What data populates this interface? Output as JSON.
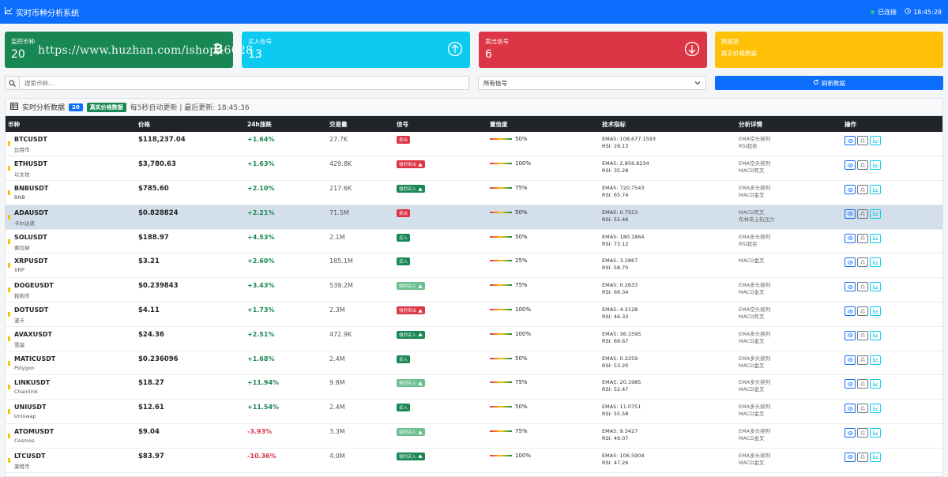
{
  "header": {
    "title": "实时币种分析系统",
    "status": "已连接",
    "time": "18:45:28"
  },
  "cards": [
    {
      "label": "监控币种",
      "value": "20",
      "icon": "bitcoin-icon",
      "color": "#198754"
    },
    {
      "label": "买入信号",
      "value": "13",
      "icon": "arrow-up-circle-icon",
      "color": "#0dcaf0"
    },
    {
      "label": "卖出信号",
      "value": "6",
      "icon": "arrow-down-circle-icon",
      "color": "#dc3545"
    },
    {
      "label": "数据源",
      "value": "真实价格数据",
      "icon": "",
      "color": "#ffc107"
    }
  ],
  "watermark": "https://www.huzhan.com/ishop46028",
  "search": {
    "placeholder": "搜索币种..."
  },
  "filter": {
    "selected": "所有信号"
  },
  "refresh_label": "刷新数据",
  "panel": {
    "title": "实时分析数据",
    "count": "20",
    "source_badge": "真实价格数据",
    "note": "每5秒自动更新 | 最后更新: 18:45:36"
  },
  "columns": [
    "币种",
    "价格",
    "24h涨跌",
    "交易量",
    "信号",
    "置信度",
    "技术指标",
    "分析详情",
    "操作"
  ],
  "colors": {
    "primary": "#0d6efd",
    "up": "#198754",
    "down": "#dc3545",
    "warning": "#ffc107"
  },
  "rows": [
    {
      "symbol": "BTCUSDT",
      "name": "比特币",
      "price": "$118,237.04",
      "change": "+1.64%",
      "dir": "up",
      "volume": "27.7K",
      "signal": "卖出",
      "sigcls": "s-red",
      "warn": false,
      "conf": "50%",
      "tech1": "EMA5: 108,677.1593",
      "tech2": "RSI: 29.13",
      "ana1": "EMA空头排列",
      "ana2": "RSI超卖"
    },
    {
      "symbol": "ETHUSDT",
      "name": "以太坊",
      "price": "$3,780.63",
      "change": "+1.63%",
      "dir": "up",
      "volume": "429.8K",
      "signal": "强烈卖出",
      "sigcls": "s-red",
      "warn": true,
      "conf": "100%",
      "tech1": "EMA5: 2,856.8234",
      "tech2": "RSI: 35.28",
      "ana1": "EMA空头排列",
      "ana2": "MACD死叉"
    },
    {
      "symbol": "BNBUSDT",
      "name": "BNB",
      "price": "$785.60",
      "change": "+2.10%",
      "dir": "up",
      "volume": "217.6K",
      "signal": "强烈买入",
      "sigcls": "s-green",
      "warn": true,
      "conf": "75%",
      "tech1": "EMA5: 720.7543",
      "tech2": "RSI: 65.74",
      "ana1": "EMA多头排列",
      "ana2": "MACD金叉"
    },
    {
      "symbol": "ADAUSDT",
      "name": "卡尔达诺",
      "price": "$0.828824",
      "change": "+2.21%",
      "dir": "up",
      "volume": "71.5M",
      "signal": "卖出",
      "sigcls": "s-red",
      "warn": false,
      "conf": "50%",
      "tech1": "EMA5: 0.7553",
      "tech2": "RSI: 51.46",
      "ana1": "MACD死叉",
      "ana2": "布林带上轨压力",
      "hl": true
    },
    {
      "symbol": "SOLUSDT",
      "name": "索拉纳",
      "price": "$188.97",
      "change": "+4.53%",
      "dir": "up",
      "volume": "2.1M",
      "signal": "买入",
      "sigcls": "s-green",
      "warn": false,
      "conf": "50%",
      "tech1": "EMA5: 180.1864",
      "tech2": "RSI: 73.12",
      "ana1": "EMA多头排列",
      "ana2": "RSI超买"
    },
    {
      "symbol": "XRPUSDT",
      "name": "XRP",
      "price": "$3.21",
      "change": "+2.60%",
      "dir": "up",
      "volume": "185.1M",
      "signal": "买入",
      "sigcls": "s-green",
      "warn": false,
      "conf": "25%",
      "tech1": "EMA5: 3.2867",
      "tech2": "RSI: 58.70",
      "ana1": "MACD金叉",
      "ana2": ""
    },
    {
      "symbol": "DOGEUSDT",
      "name": "狗狗币",
      "price": "$0.239843",
      "change": "+3.43%",
      "dir": "up",
      "volume": "539.2M",
      "signal": "强烈买入",
      "sigcls": "s-lgreen",
      "warn": true,
      "conf": "75%",
      "tech1": "EMA5: 0.2633",
      "tech2": "RSI: 69.34",
      "ana1": "EMA多头排列",
      "ana2": "MACD金叉"
    },
    {
      "symbol": "DOTUSDT",
      "name": "波卡",
      "price": "$4.11",
      "change": "+1.73%",
      "dir": "up",
      "volume": "2.3M",
      "signal": "强烈卖出",
      "sigcls": "s-red",
      "warn": true,
      "conf": "100%",
      "tech1": "EMA5: 4.2128",
      "tech2": "RSI: 46.33",
      "ana1": "EMA空头排列",
      "ana2": "MACD死叉"
    },
    {
      "symbol": "AVAXUSDT",
      "name": "雪崩",
      "price": "$24.36",
      "change": "+2.51%",
      "dir": "up",
      "volume": "472.9K",
      "signal": "强烈买入",
      "sigcls": "s-green",
      "warn": true,
      "conf": "100%",
      "tech1": "EMA5: 36.1595",
      "tech2": "RSI: 69.67",
      "ana1": "EMA多头排列",
      "ana2": "MACD金叉"
    },
    {
      "symbol": "MATICUSDT",
      "name": "Polygon",
      "price": "$0.236096",
      "change": "+1.68%",
      "dir": "up",
      "volume": "2.4M",
      "signal": "买入",
      "sigcls": "s-green",
      "warn": false,
      "conf": "50%",
      "tech1": "EMA5: 0.2259",
      "tech2": "RSI: 53.20",
      "ana1": "EMA多头排列",
      "ana2": "MACD金叉"
    },
    {
      "symbol": "LINKUSDT",
      "name": "Chainlink",
      "price": "$18.27",
      "change": "+11.94%",
      "dir": "up",
      "volume": "9.8M",
      "signal": "强烈买入",
      "sigcls": "s-lgreen",
      "warn": true,
      "conf": "75%",
      "tech1": "EMA5: 20.1985",
      "tech2": "RSI: 52.47",
      "ana1": "EMA多头排列",
      "ana2": "MACD金叉"
    },
    {
      "symbol": "UNIUSDT",
      "name": "Uniswap",
      "price": "$12.61",
      "change": "+11.54%",
      "dir": "up",
      "volume": "2.4M",
      "signal": "买入",
      "sigcls": "s-green",
      "warn": false,
      "conf": "50%",
      "tech1": "EMA5: 11.0751",
      "tech2": "RSI: 55.58",
      "ana1": "EMA多头排列",
      "ana2": "MACD金叉"
    },
    {
      "symbol": "ATOMUSDT",
      "name": "Cosmos",
      "price": "$9.04",
      "change": "-3.93%",
      "dir": "down",
      "volume": "3.3M",
      "signal": "强烈买入",
      "sigcls": "s-lgreen",
      "warn": true,
      "conf": "75%",
      "tech1": "EMA5: 9.3427",
      "tech2": "RSI: 49.07",
      "ana1": "EMA多头排列",
      "ana2": "MACD金叉"
    },
    {
      "symbol": "LTCUSDT",
      "name": "莱特币",
      "price": "$83.97",
      "change": "-10.36%",
      "dir": "down",
      "volume": "4.0M",
      "signal": "强烈买入",
      "sigcls": "s-green",
      "warn": true,
      "conf": "100%",
      "tech1": "EMA5: 106.5904",
      "tech2": "RSI: 47.26",
      "ana1": "EMA多头排列",
      "ana2": "MACD金叉"
    }
  ]
}
